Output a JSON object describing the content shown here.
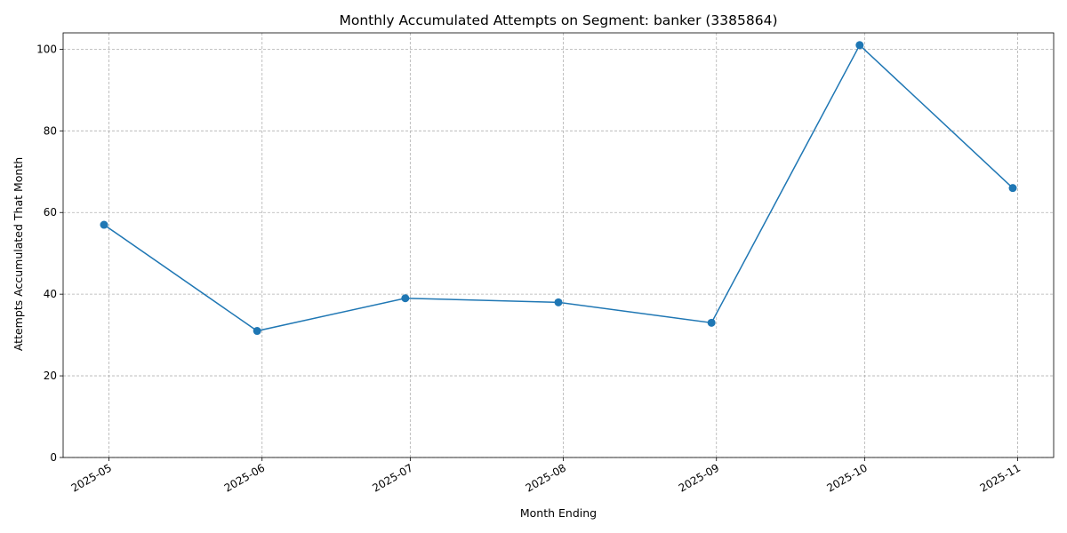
{
  "chart_data": {
    "type": "line",
    "title": "Monthly Accumulated Attempts on Segment: banker (3385864)",
    "xlabel": "Month Ending",
    "ylabel": "Attempts Accumulated That Month",
    "x": [
      "2025-04-30",
      "2025-05-31",
      "2025-06-30",
      "2025-07-31",
      "2025-08-31",
      "2025-09-30",
      "2025-10-31"
    ],
    "series": [
      {
        "values": [
          57,
          31,
          39,
          38,
          33,
          101,
          66
        ]
      }
    ],
    "x_ticks": [
      "2025-05",
      "2025-06",
      "2025-07",
      "2025-08",
      "2025-09",
      "2025-10",
      "2025-11"
    ],
    "y_ticks": [
      0,
      20,
      40,
      60,
      80,
      100
    ],
    "ylim": [
      0,
      104
    ],
    "grid": true,
    "line_color": "#1f77b4",
    "marker": "circle"
  }
}
